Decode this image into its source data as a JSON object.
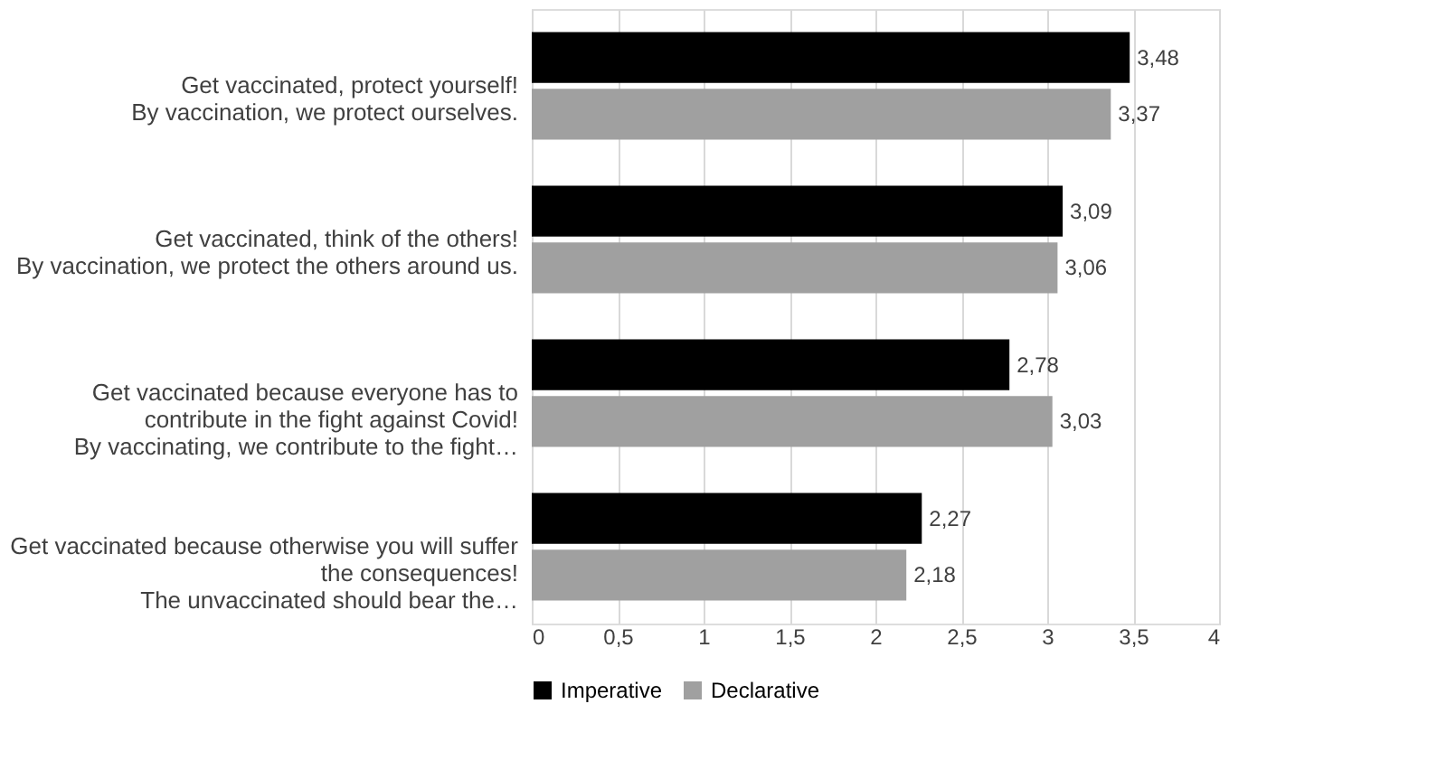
{
  "chart_data": {
    "type": "bar",
    "orientation": "horizontal",
    "categories": [
      "Get vaccinated, protect yourself!\nBy vaccination, we protect ourselves.",
      "Get vaccinated, think of the others!\nBy vaccination, we protect the others around us.",
      "Get vaccinated because everyone has to\ncontribute in the fight against Covid!\nBy vaccinating, we contribute to the fight…",
      "Get vaccinated because otherwise you will suffer\nthe consequences!\nThe unvaccinated should bear the…"
    ],
    "series": [
      {
        "name": "Imperative",
        "color": "#000000",
        "values": [
          3.48,
          3.09,
          2.78,
          2.27
        ],
        "value_labels": [
          "3,48",
          "3,09",
          "2,78",
          "2,27"
        ]
      },
      {
        "name": "Declarative",
        "color": "#a0a0a0",
        "values": [
          3.37,
          3.06,
          3.03,
          2.18
        ],
        "value_labels": [
          "3,37",
          "3,06",
          "3,03",
          "2,18"
        ]
      }
    ],
    "xlim": [
      0,
      4
    ],
    "xticks": [
      0,
      {
        "value": 0.5,
        "label": "0,5"
      },
      1,
      {
        "value": 1.5,
        "label": "1,5"
      },
      2,
      {
        "value": 2.5,
        "label": "2,5"
      },
      3,
      {
        "value": 3.5,
        "label": "3,5"
      },
      4
    ],
    "grid": "x",
    "legend": "bottom"
  }
}
